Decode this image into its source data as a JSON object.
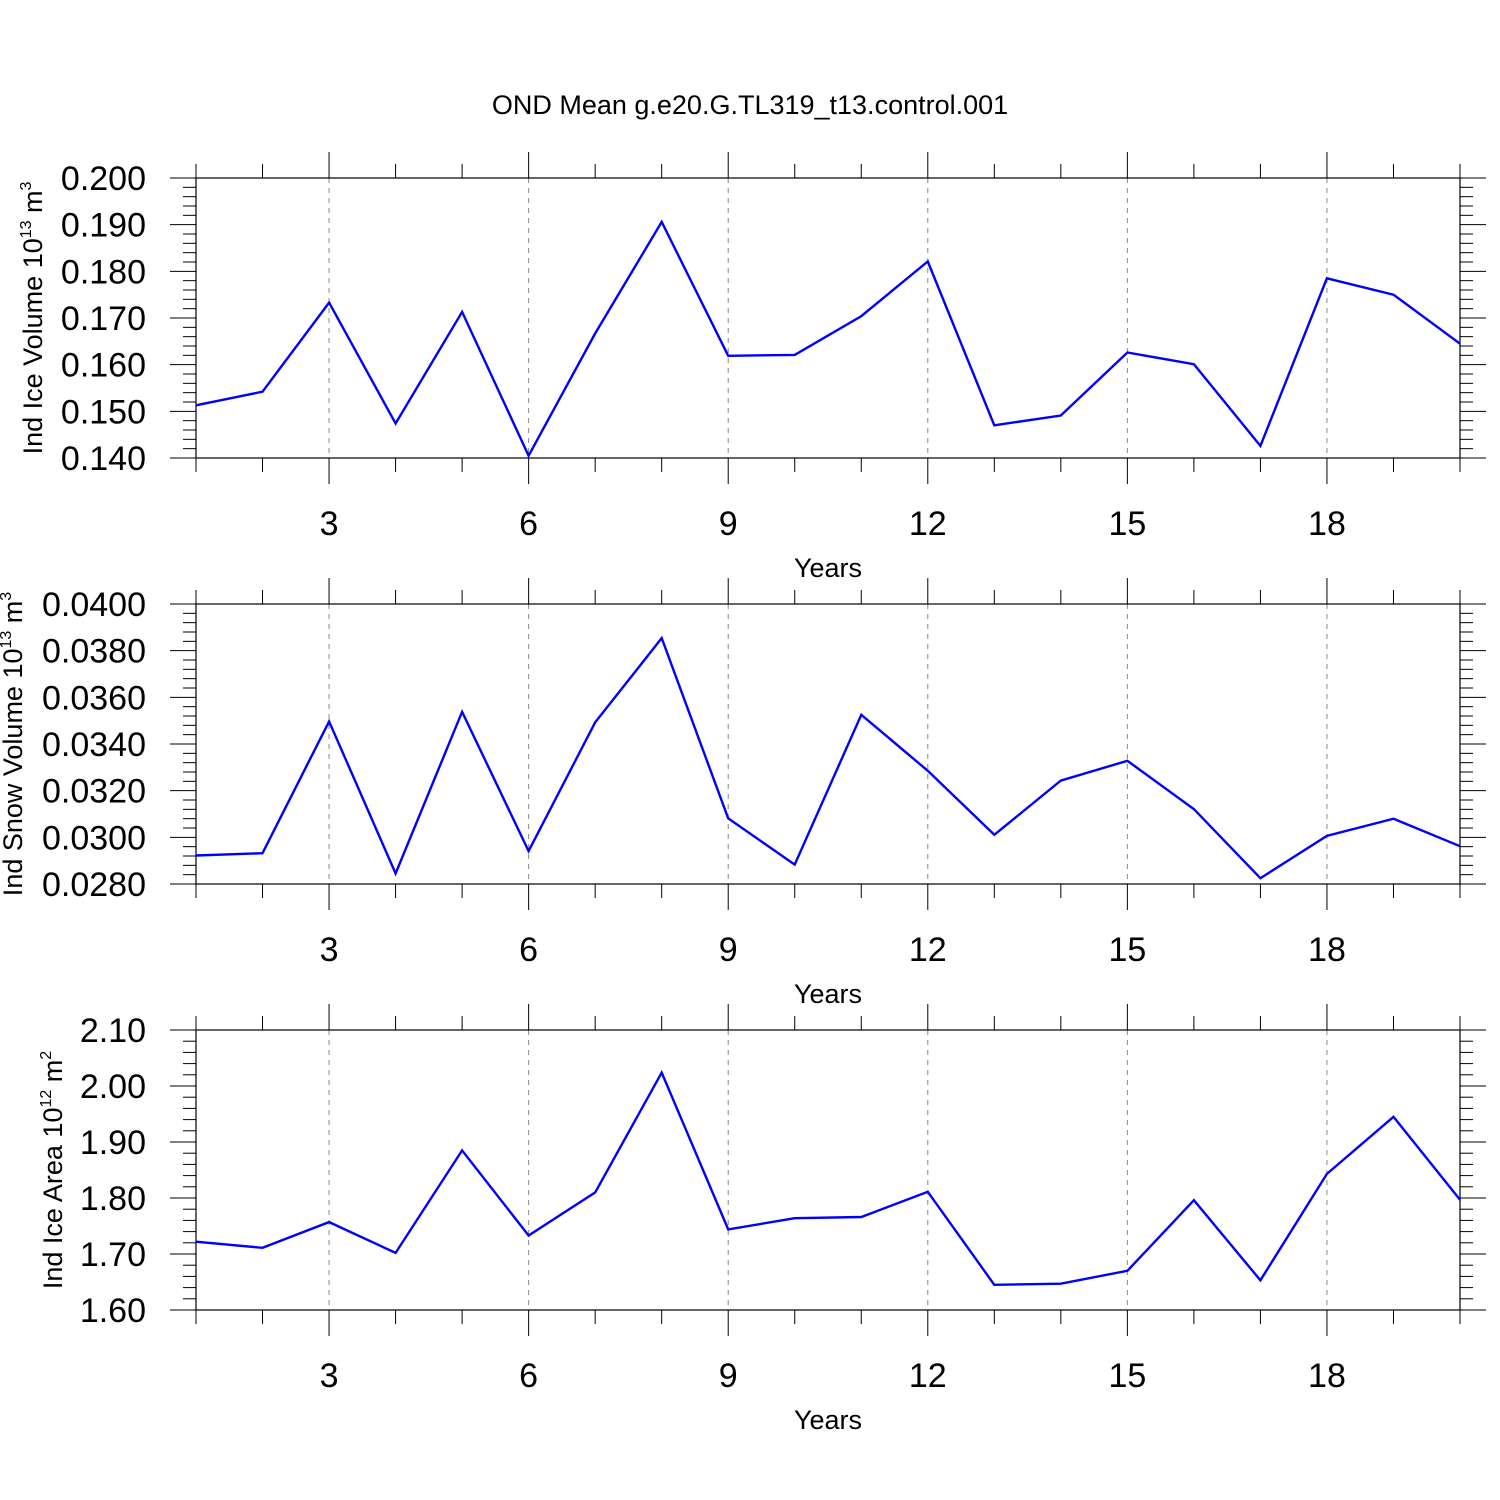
{
  "title": "OND Mean g.e20.G.TL319_t13.control.001",
  "colors": {
    "series": "#0000ff",
    "axis": "#000000",
    "grid": "#888888"
  },
  "chart_data": [
    {
      "type": "line",
      "ylabel": {
        "main": "Ind Ice Volume 10",
        "sup": "13",
        "tail": " m",
        "sup2": "3"
      },
      "xlabel": "Years",
      "x": [
        1,
        2,
        3,
        4,
        5,
        6,
        7,
        8,
        9,
        10,
        11,
        12,
        13,
        14,
        15,
        16,
        17,
        18,
        19,
        20
      ],
      "xlim": [
        1,
        20
      ],
      "xticks": [
        3,
        6,
        9,
        12,
        15,
        18
      ],
      "ylim": [
        0.14,
        0.2
      ],
      "yticks": [
        "0.200",
        "0.190",
        "0.180",
        "0.170",
        "0.160",
        "0.150",
        "0.140"
      ],
      "ytick_values": [
        0.2,
        0.19,
        0.18,
        0.17,
        0.16,
        0.15,
        0.14
      ],
      "ygrid": false,
      "xgrid": true,
      "series": [
        {
          "values": [
            0.1513,
            0.1542,
            0.1733,
            0.1474,
            0.1713,
            0.1405,
            0.1667,
            0.1906,
            0.1619,
            0.1621,
            0.1704,
            0.1821,
            0.147,
            0.1491,
            0.1626,
            0.1601,
            0.1426,
            0.1785,
            0.175,
            0.1645
          ]
        }
      ]
    },
    {
      "type": "line",
      "ylabel": {
        "main": "Ind Snow Volume 10",
        "sup": "13",
        "tail": " m",
        "sup2": "3"
      },
      "xlabel": "Years",
      "x": [
        1,
        2,
        3,
        4,
        5,
        6,
        7,
        8,
        9,
        10,
        11,
        12,
        13,
        14,
        15,
        16,
        17,
        18,
        19,
        20
      ],
      "xlim": [
        1,
        20
      ],
      "xticks": [
        3,
        6,
        9,
        12,
        15,
        18
      ],
      "ylim": [
        0.028,
        0.04
      ],
      "yticks": [
        "0.0400",
        "0.0380",
        "0.0360",
        "0.0340",
        "0.0320",
        "0.0300",
        "0.0280"
      ],
      "ytick_values": [
        0.04,
        0.038,
        0.036,
        0.034,
        0.032,
        0.03,
        0.028
      ],
      "ygrid": false,
      "xgrid": true,
      "series": [
        {
          "values": [
            0.02922,
            0.02932,
            0.03497,
            0.02845,
            0.03538,
            0.02941,
            0.03493,
            0.03854,
            0.03081,
            0.02883,
            0.03525,
            0.03285,
            0.03011,
            0.03243,
            0.03328,
            0.03121,
            0.02825,
            0.03006,
            0.0308,
            0.02962
          ]
        }
      ]
    },
    {
      "type": "line",
      "ylabel": {
        "main": "Ind Ice Area 10",
        "sup": "12",
        "tail": " m",
        "sup2": "2"
      },
      "xlabel": "Years",
      "x": [
        1,
        2,
        3,
        4,
        5,
        6,
        7,
        8,
        9,
        10,
        11,
        12,
        13,
        14,
        15,
        16,
        17,
        18,
        19,
        20
      ],
      "xlim": [
        1,
        20
      ],
      "xticks": [
        3,
        6,
        9,
        12,
        15,
        18
      ],
      "ylim": [
        1.6,
        2.1
      ],
      "yticks": [
        "2.10",
        "2.00",
        "1.90",
        "1.80",
        "1.70",
        "1.60"
      ],
      "ytick_values": [
        2.1,
        2.0,
        1.9,
        1.8,
        1.7,
        1.6
      ],
      "ygrid": false,
      "xgrid": true,
      "series": [
        {
          "values": [
            1.722,
            1.711,
            1.757,
            1.702,
            1.885,
            1.733,
            1.81,
            2.024,
            1.744,
            1.764,
            1.766,
            1.811,
            1.645,
            1.647,
            1.67,
            1.796,
            1.653,
            1.843,
            1.945,
            1.797
          ]
        }
      ]
    }
  ]
}
